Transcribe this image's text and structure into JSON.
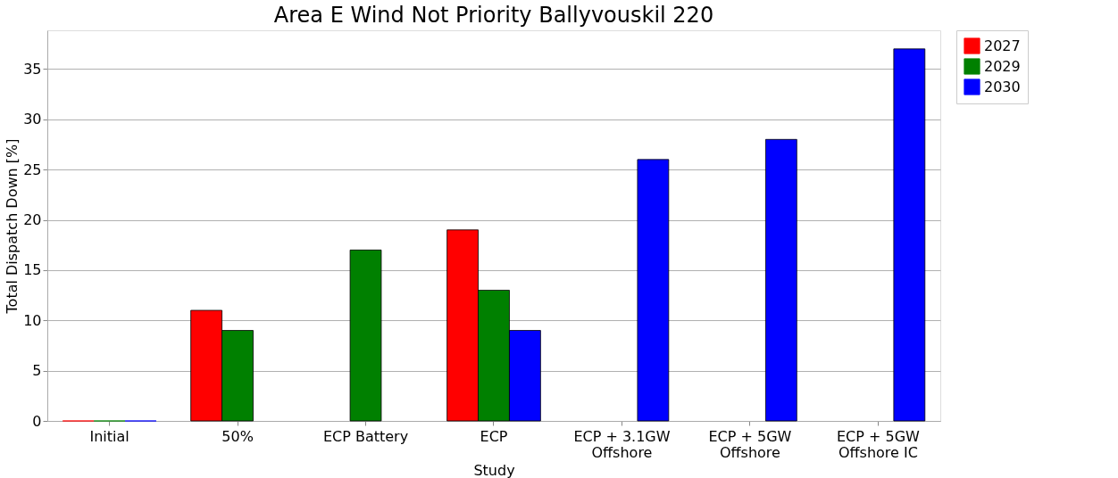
{
  "chart_data": {
    "type": "bar",
    "title": "Area E Wind Not Priority Ballyvouskil 220",
    "xlabel": "Study",
    "ylabel": "Total Dispatch Down [%]",
    "categories": [
      "Initial",
      "50%",
      "ECP Battery",
      "ECP",
      "ECP + 3.1GW\nOffshore",
      "ECP + 5GW\nOffshore",
      "ECP + 5GW\nOffshore IC"
    ],
    "series": [
      {
        "name": "2027",
        "color": "#ff0000",
        "values": [
          0,
          11,
          null,
          19,
          null,
          null,
          null
        ]
      },
      {
        "name": "2029",
        "color": "#008000",
        "values": [
          0,
          9,
          17,
          13,
          null,
          null,
          null
        ]
      },
      {
        "name": "2030",
        "color": "#0000ff",
        "values": [
          0,
          null,
          null,
          9,
          26,
          28,
          37
        ]
      }
    ],
    "ylim": [
      0,
      38.85
    ],
    "yticks": [
      0,
      5,
      10,
      15,
      20,
      25,
      30,
      35
    ],
    "grid": "y",
    "legend": "right"
  }
}
